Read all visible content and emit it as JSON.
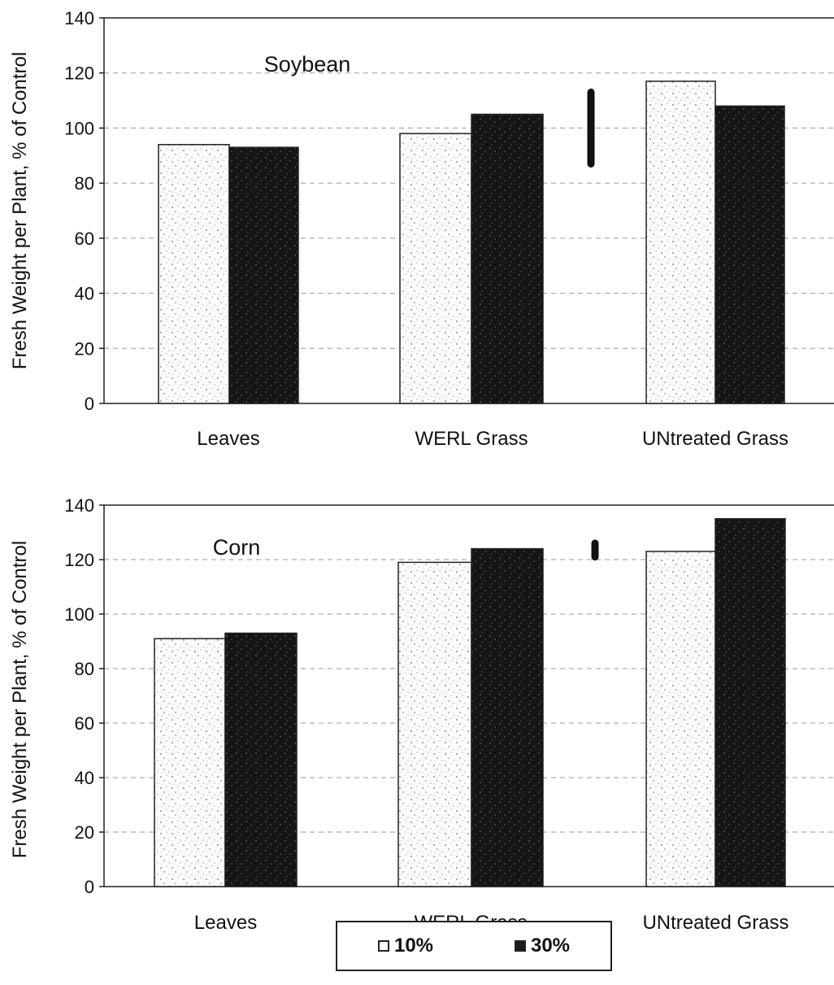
{
  "chart_data": [
    {
      "type": "bar",
      "title": "Soybean",
      "ylabel": "Fresh Weight per Plant, % of Control",
      "categories": [
        "Leaves",
        "WERL Grass",
        "UNtreated Grass"
      ],
      "series": [
        {
          "name": "10%",
          "values": [
            94,
            98,
            117
          ]
        },
        {
          "name": "30%",
          "values": [
            93,
            105,
            108
          ]
        }
      ],
      "ylim": [
        0,
        140
      ],
      "yticks": [
        "0",
        "20",
        "40",
        "60",
        "80",
        "100",
        "120",
        "140"
      ],
      "error_bar": {
        "x_between": "WERL Grass/UNtreated Grass",
        "low": 87,
        "high": 113
      },
      "grid": true
    },
    {
      "type": "bar",
      "title": "Corn",
      "ylabel": "Fresh Weight per Plant, % of Control",
      "categories": [
        "Leaves",
        "WERL Grass",
        "UNtreated Grass"
      ],
      "series": [
        {
          "name": "10%",
          "values": [
            91,
            119,
            123
          ]
        },
        {
          "name": "30%",
          "values": [
            93,
            124,
            135
          ]
        }
      ],
      "ylim": [
        0,
        140
      ],
      "yticks": [
        "0",
        "20",
        "40",
        "60",
        "80",
        "100",
        "120",
        "140"
      ],
      "error_bar": {
        "x_between": "WERL Grass/UNtreated Grass",
        "low": 121,
        "high": 126
      },
      "grid": true
    }
  ],
  "legend": {
    "items": [
      {
        "label": "10%",
        "color": "#ffffff"
      },
      {
        "label": "30%",
        "color": "#1a1a1a"
      }
    ],
    "placement": "bottom-center"
  },
  "colors": {
    "series_10": "#f4f4f4",
    "series_30": "#161616",
    "grid": "#9a9a9a",
    "axis": "#222222"
  }
}
